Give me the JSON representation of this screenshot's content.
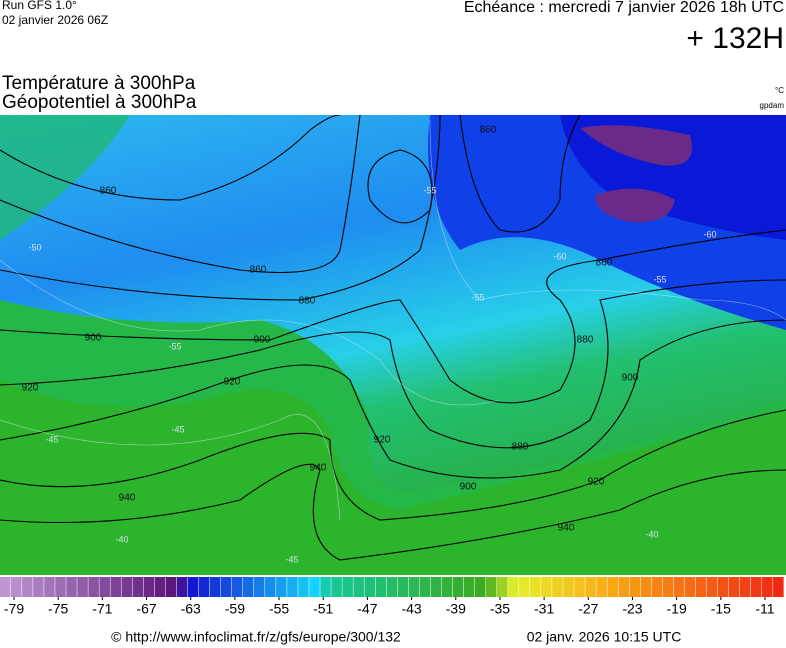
{
  "header": {
    "run": "Run GFS 1.0°",
    "run_date": "02 janvier 2026 06Z",
    "valid": "Echéance : mercredi 7 janvier 2026 18h UTC",
    "lead": "+ 132H",
    "title_temperature": "Température à 300hPa",
    "title_geopotential": "Géopotentiel à 300hPa",
    "unit_temperature": "°C",
    "unit_geopotential": "gpdam"
  },
  "map": {
    "geopotential_labels": [
      "860",
      "860",
      "880",
      "900",
      "900",
      "920",
      "920",
      "940",
      "940",
      "920",
      "860",
      "860",
      "880",
      "900",
      "920",
      "940",
      "900",
      "880"
    ],
    "temperature_labels": [
      "-55",
      "-55",
      "-55",
      "-60",
      "-60",
      "-55",
      "-45",
      "-45",
      "-40",
      "-45",
      "-40",
      "-50"
    ]
  },
  "colorbar": {
    "ticks": [
      -79,
      -75,
      -71,
      -67,
      -63,
      -59,
      -55,
      -51,
      -47,
      -43,
      -39,
      -35,
      -31,
      -27,
      -23,
      -19,
      -15,
      -11
    ]
  },
  "footer": {
    "source": "© http://www.infoclimat.fr/z/gfs/europe/300/132",
    "generated": "02 janv. 2026 10:15 UTC"
  }
}
